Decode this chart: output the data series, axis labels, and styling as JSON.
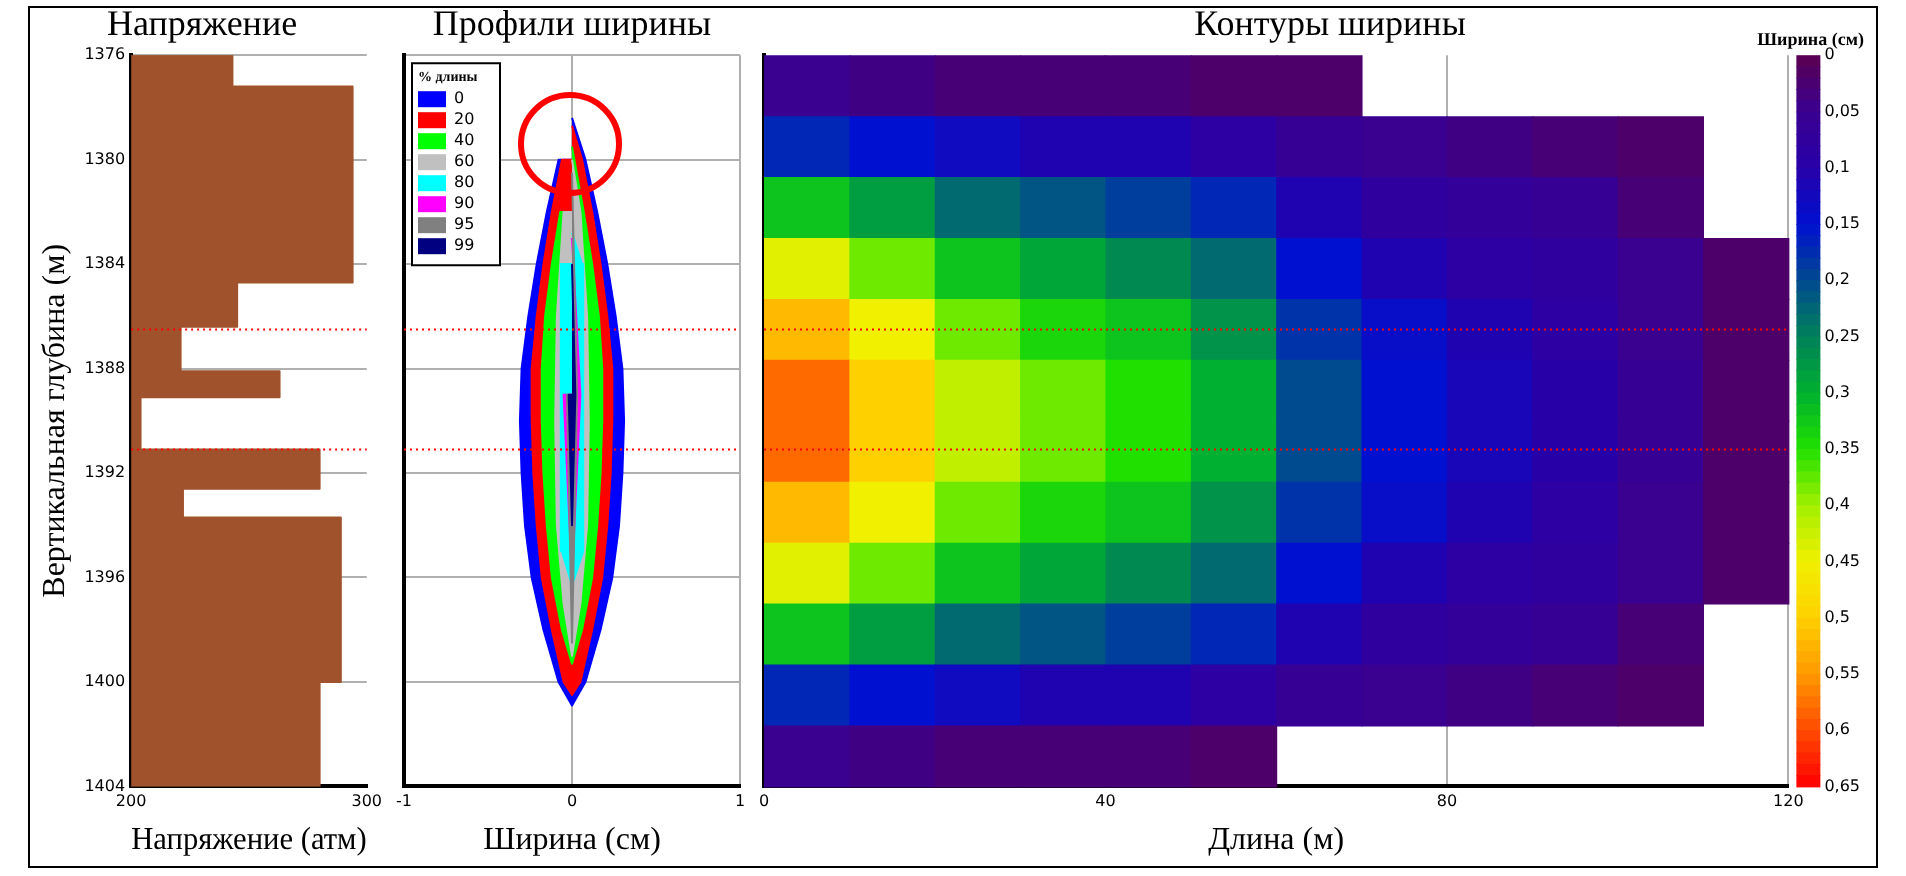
{
  "chart_data": [
    {
      "type": "area",
      "title": "Напряжение",
      "xlabel": "Напряжение (атм)",
      "ylabel": "Вертикальная глубина (м)",
      "orientation": "horizontal",
      "x": [
        1376,
        1377.2,
        1377.2,
        1384.7,
        1384.7,
        1386.4,
        1386.4,
        1388.1,
        1388.1,
        1389.1,
        1389.1,
        1391.1,
        1391.1,
        1392.6,
        1392.6,
        1393.7,
        1393.7,
        1400,
        1400,
        1404
      ],
      "values": [
        243,
        243,
        294,
        294,
        245,
        245,
        221,
        221,
        263,
        263,
        204,
        204,
        280,
        280,
        222,
        222,
        289,
        289,
        280,
        280
      ],
      "color": "#a0522d",
      "xlim": [
        200,
        300
      ],
      "xticks": [
        200,
        300
      ],
      "ylim": [
        1404,
        1376
      ],
      "yticks": [
        1376,
        1380,
        1384,
        1388,
        1392,
        1396,
        1400,
        1404
      ],
      "grid": "y",
      "ref_lines": [
        {
          "axis": "y",
          "value": 1386.5,
          "color": "#ff0000",
          "line_style": "dotted"
        },
        {
          "axis": "y",
          "value": 1391.1,
          "color": "#ff0000",
          "line_style": "dotted"
        }
      ]
    },
    {
      "type": "area",
      "title": "Профили ширины",
      "xlabel": "Ширина (см)",
      "orientation": "horizontal",
      "legend": "top left",
      "legend_title": "% длины",
      "series": [
        {
          "name": "0",
          "color": "#0000ff",
          "x": [
            1378.4,
            1380,
            1382,
            1384,
            1386,
            1388,
            1390,
            1392,
            1394,
            1396,
            1398,
            1400,
            1400.9,
            1400,
            1398,
            1396,
            1394,
            1392,
            1390,
            1388,
            1386,
            1384,
            1382,
            1380
          ],
          "values": [
            0,
            0.08,
            0.15,
            0.21,
            0.26,
            0.3,
            0.31,
            0.3,
            0.28,
            0.24,
            0.17,
            0.08,
            0,
            -0.08,
            -0.17,
            -0.24,
            -0.28,
            -0.3,
            -0.31,
            -0.3,
            -0.26,
            -0.21,
            -0.15,
            -0.08
          ]
        },
        {
          "name": "20",
          "color": "#ff0000",
          "x": [
            1378.7,
            1380,
            1382,
            1384,
            1386,
            1388,
            1390,
            1392,
            1394,
            1396,
            1398,
            1400,
            1400.5,
            1400,
            1398,
            1396,
            1394,
            1392,
            1390,
            1388,
            1386,
            1384,
            1382,
            1380
          ],
          "values": [
            0,
            0.06,
            0.12,
            0.17,
            0.21,
            0.24,
            0.24,
            0.23,
            0.21,
            0.18,
            0.12,
            0.05,
            0,
            -0.05,
            -0.12,
            -0.18,
            -0.21,
            -0.23,
            -0.24,
            -0.24,
            -0.21,
            -0.17,
            -0.12,
            -0.06
          ]
        },
        {
          "name": "40",
          "color": "#00ff00",
          "x": [
            1379.5,
            1382,
            1384,
            1386,
            1388,
            1390,
            1392,
            1394,
            1396,
            1398,
            1399.3,
            1398,
            1396,
            1394,
            1392,
            1390,
            1388,
            1386,
            1384,
            1382
          ],
          "values": [
            0,
            0.07,
            0.12,
            0.16,
            0.18,
            0.18,
            0.17,
            0.15,
            0.12,
            0.06,
            0,
            -0.06,
            -0.12,
            -0.15,
            -0.17,
            -0.18,
            -0.18,
            -0.16,
            -0.12,
            -0.07
          ]
        },
        {
          "name": "60",
          "color": "#c0c0c0",
          "x": [
            1380,
            1382,
            1386,
            1390,
            1394,
            1397,
            1399,
            1397,
            1394,
            1390,
            1386,
            1382
          ],
          "values": [
            0,
            0.05,
            0.09,
            0.1,
            0.09,
            0.05,
            0,
            -0.05,
            -0.09,
            -0.1,
            -0.09,
            -0.05
          ]
        },
        {
          "name": "80",
          "color": "#00ffff",
          "x": [
            1382.8,
            1384,
            1388,
            1392,
            1395,
            1396.3,
            1395,
            1392,
            1388,
            1384
          ],
          "values": [
            0,
            0.06,
            0.07,
            0.07,
            0.06,
            0,
            -0.06,
            -0.07,
            -0.07,
            -0.06
          ]
        },
        {
          "name": "90",
          "color": "#ff00ff",
          "x": [
            1383,
            1389,
            1396,
            1389
          ],
          "values": [
            0,
            0.05,
            0,
            -0.05
          ]
        },
        {
          "name": "95",
          "color": "#808080",
          "x": [
            1380.5,
            1389,
            1398.5,
            1389
          ],
          "values": [
            0,
            0.03,
            0,
            -0.03
          ]
        },
        {
          "name": "99",
          "color": "#000080",
          "x": [
            1384,
            1389,
            1394,
            1389
          ],
          "values": [
            0,
            0.02,
            0,
            -0.02
          ]
        }
      ],
      "xlim": [
        -1,
        1
      ],
      "xticks": [
        -1,
        0,
        1
      ],
      "ylim": [
        1404,
        1376
      ],
      "yticks": [
        1376,
        1380,
        1384,
        1388,
        1392,
        1396,
        1400,
        1404
      ],
      "grid": true,
      "tick_labels": "x",
      "ref_lines": [
        {
          "axis": "y",
          "value": 1386.5,
          "color": "#ff0000",
          "line_style": "dotted"
        },
        {
          "axis": "y",
          "value": 1391.1,
          "color": "#ff0000",
          "line_style": "dotted"
        }
      ]
    },
    {
      "type": "heatmap",
      "title": "Контуры ширины",
      "xlabel": "Длина (м)",
      "clabel": "Ширина (см)",
      "x": [
        5,
        15,
        25,
        35,
        45,
        55,
        65,
        75,
        85,
        95,
        105,
        115
      ],
      "y_categories": [
        null,
        null,
        null,
        null,
        null,
        null,
        null,
        null,
        null,
        null,
        null,
        null
      ],
      "cells": [
        [
          0.05,
          0.04,
          0.03,
          0.03,
          0.03,
          0.02,
          0.02,
          null,
          null,
          null,
          null,
          null
        ],
        [
          0.17,
          0.15,
          0.13,
          0.11,
          0.11,
          0.09,
          0.06,
          0.05,
          0.04,
          0.03,
          0.02,
          null
        ],
        [
          0.32,
          0.28,
          0.23,
          0.21,
          0.19,
          0.17,
          0.11,
          0.08,
          0.07,
          0.06,
          0.03,
          null
        ],
        [
          0.44,
          0.38,
          0.32,
          0.29,
          0.26,
          0.23,
          0.15,
          0.11,
          0.09,
          0.08,
          0.05,
          0.02
        ],
        [
          0.52,
          0.45,
          0.38,
          0.34,
          0.32,
          0.27,
          0.18,
          0.14,
          0.11,
          0.09,
          0.05,
          0.02
        ],
        [
          0.58,
          0.5,
          0.42,
          0.38,
          0.35,
          0.3,
          0.2,
          0.15,
          0.12,
          0.1,
          0.06,
          0.02
        ],
        [
          0.58,
          0.5,
          0.42,
          0.38,
          0.35,
          0.3,
          0.2,
          0.15,
          0.12,
          0.1,
          0.06,
          0.02
        ],
        [
          0.52,
          0.45,
          0.38,
          0.34,
          0.32,
          0.27,
          0.18,
          0.14,
          0.11,
          0.09,
          0.05,
          0.02
        ],
        [
          0.44,
          0.38,
          0.32,
          0.29,
          0.26,
          0.23,
          0.15,
          0.11,
          0.09,
          0.08,
          0.05,
          0.02
        ],
        [
          0.32,
          0.28,
          0.23,
          0.21,
          0.19,
          0.17,
          0.11,
          0.08,
          0.07,
          0.06,
          0.03,
          null
        ],
        [
          0.17,
          0.15,
          0.13,
          0.11,
          0.11,
          0.09,
          0.06,
          0.05,
          0.04,
          0.03,
          0.02,
          null
        ],
        [
          0.05,
          0.04,
          0.03,
          0.03,
          0.03,
          0.02,
          null,
          null,
          null,
          null,
          null,
          null
        ]
      ],
      "clim": [
        0,
        0.65
      ],
      "cticks": [
        0,
        {
          "value": 0.05,
          "label": "0,05"
        },
        {
          "value": 0.1,
          "label": "0,1"
        },
        {
          "value": 0.15,
          "label": "0,15"
        },
        {
          "value": 0.2,
          "label": "0,2"
        },
        {
          "value": 0.25,
          "label": "0,25"
        },
        {
          "value": 0.3,
          "label": "0,3"
        },
        {
          "value": 0.35,
          "label": "0,35"
        },
        {
          "value": 0.4,
          "label": "0,4"
        },
        {
          "value": 0.45,
          "label": "0,45"
        },
        {
          "value": 0.5,
          "label": "0,5"
        },
        {
          "value": 0.55,
          "label": "0,55"
        },
        {
          "value": 0.6,
          "label": "0,6"
        },
        {
          "value": 0.65,
          "label": "0,65"
        }
      ],
      "xlim": [
        0,
        120
      ],
      "xticks": [
        0,
        40,
        80,
        120
      ],
      "grid": "x",
      "tick_labels": "x"
    }
  ]
}
